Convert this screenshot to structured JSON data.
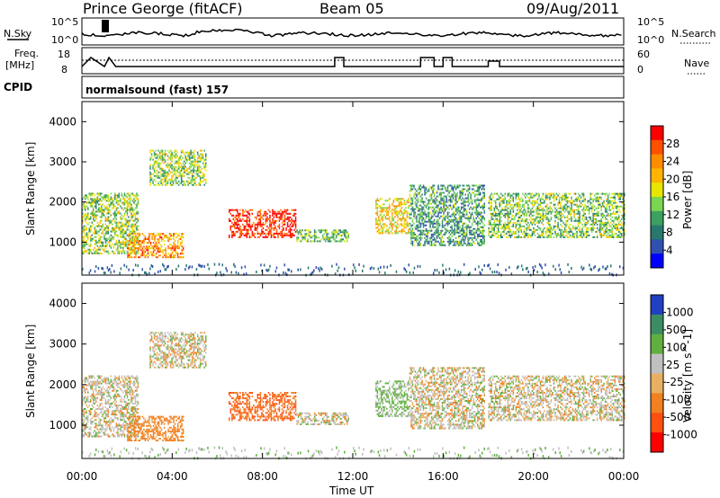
{
  "header": {
    "station": "Prince George (fitACF)",
    "beam": "Beam 05",
    "date": "09/Aug/2011"
  },
  "noise_panel": {
    "left_label": "N.Sky",
    "right_label": "N.Search",
    "left_ticks": [
      "10^5",
      "10^0"
    ],
    "right_ticks": [
      "10^5",
      "10^0"
    ]
  },
  "freq_panel": {
    "left_label_1": "Freq.",
    "left_label_2": "[MHz]",
    "right_label": "Nave",
    "left_ticks": [
      "18",
      "8"
    ],
    "right_ticks": [
      "60",
      "0"
    ]
  },
  "cpid_panel": {
    "label": "CPID",
    "mode_text": "normalsound (fast) 157"
  },
  "axes": {
    "ylabel": "Slant Range [km]",
    "xlabel": "Time UT",
    "yticks": [
      "4000",
      "3000",
      "2000",
      "1000"
    ],
    "xticks": [
      "00:00",
      "04:00",
      "08:00",
      "12:00",
      "16:00",
      "20:00",
      "00:00"
    ]
  },
  "power_scale": {
    "label": "Power [dB]",
    "ticks": [
      "28",
      "24",
      "20",
      "16",
      "12",
      "8",
      "4"
    ],
    "colors": [
      "#ff0000",
      "#ff5000",
      "#ff8c00",
      "#ffb400",
      "#e6e600",
      "#7ad650",
      "#3ca060",
      "#28786e",
      "#3050b0",
      "#0000ff"
    ]
  },
  "velocity_scale": {
    "label": "Velocity [m s^-1]",
    "ticks": [
      "1000",
      "500",
      "100",
      "25",
      "-25",
      "-100",
      "-500",
      "-1000"
    ],
    "colors": [
      "#2040c0",
      "#3c8c64",
      "#60b040",
      "#c0c0c0",
      "#e8b060",
      "#f08020",
      "#ff5010",
      "#ff0000"
    ]
  },
  "chart_data": {
    "type": "heatmap",
    "title": "Prince George (fitACF)",
    "xlabel": "Time UT",
    "ylabel": "Slant Range [km]",
    "xlim": [
      0,
      24
    ],
    "ylim": [
      180,
      4500
    ],
    "x_ticks_hours": [
      0,
      4,
      8,
      12,
      16,
      20,
      24
    ],
    "y_ticks_km": [
      1000,
      2000,
      3000,
      4000
    ],
    "power_range_db": [
      0,
      30
    ],
    "velocity_range_ms": [
      -1000,
      1000
    ],
    "echo_regions": [
      {
        "t_start": 0.0,
        "t_end": 2.5,
        "r_min": 700,
        "r_max": 2200,
        "power_db": 14,
        "velocity_ms": 0
      },
      {
        "t_start": 2.0,
        "t_end": 4.5,
        "r_min": 600,
        "r_max": 1200,
        "power_db": 22,
        "velocity_ms": -150
      },
      {
        "t_start": 3.0,
        "t_end": 5.5,
        "r_min": 2400,
        "r_max": 3300,
        "power_db": 14,
        "velocity_ms": 0
      },
      {
        "t_start": 6.5,
        "t_end": 9.5,
        "r_min": 1100,
        "r_max": 1800,
        "power_db": 28,
        "velocity_ms": -300
      },
      {
        "t_start": 9.5,
        "t_end": 11.8,
        "r_min": 1000,
        "r_max": 1300,
        "power_db": 12,
        "velocity_ms": 0
      },
      {
        "t_start": 13.0,
        "t_end": 14.5,
        "r_min": 1200,
        "r_max": 2100,
        "power_db": 18,
        "velocity_ms": 100
      },
      {
        "t_start": 14.5,
        "t_end": 17.8,
        "r_min": 900,
        "r_max": 2400,
        "power_db": 10,
        "velocity_ms": 0
      },
      {
        "t_start": 18.0,
        "t_end": 24.0,
        "r_min": 1100,
        "r_max": 2200,
        "power_db": 13,
        "velocity_ms": 0
      }
    ],
    "ground_scatter_band_km": [
      180,
      450
    ]
  }
}
